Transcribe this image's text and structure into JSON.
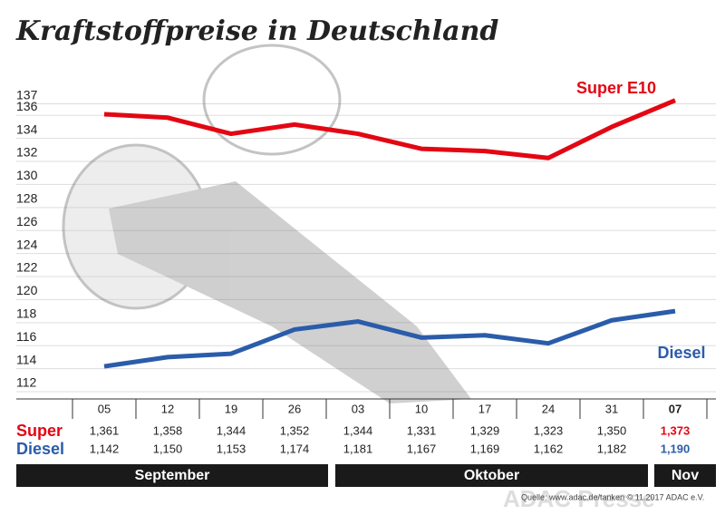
{
  "chart_data": {
    "type": "line",
    "title": "Kraftstoffpreise in Deutschland",
    "categories": [
      "05",
      "12",
      "19",
      "26",
      "03",
      "10",
      "17",
      "24",
      "31",
      "07"
    ],
    "series": [
      {
        "name": "Super E10",
        "row_label": "Super",
        "color": "#e30613",
        "values": [
          136.1,
          135.8,
          134.4,
          135.2,
          134.4,
          133.1,
          132.9,
          132.3,
          135.0,
          137.3
        ],
        "value_labels": [
          "1,361",
          "1,358",
          "1,344",
          "1,352",
          "1,344",
          "1,331",
          "1,329",
          "1,323",
          "1,350",
          "1,373"
        ]
      },
      {
        "name": "Diesel",
        "row_label": "Diesel",
        "color": "#2a5caa",
        "values": [
          114.2,
          115.0,
          115.3,
          117.4,
          118.1,
          116.7,
          116.9,
          116.2,
          118.2,
          119.0
        ],
        "value_labels": [
          "1,142",
          "1,150",
          "1,153",
          "1,174",
          "1,181",
          "1,167",
          "1,169",
          "1,162",
          "1,182",
          "1,190"
        ]
      }
    ],
    "months": [
      "September",
      "Oktober",
      "Nov"
    ],
    "ylim": [
      111,
      138.5
    ],
    "yticks": [
      112,
      114,
      116,
      118,
      120,
      122,
      124,
      126,
      128,
      130,
      132,
      134,
      136,
      137
    ],
    "grid": true,
    "source": "Quelle: www.adac.de/tanken  © 11.2017  ADAC e.V.",
    "watermark": "ADAC Presse"
  }
}
